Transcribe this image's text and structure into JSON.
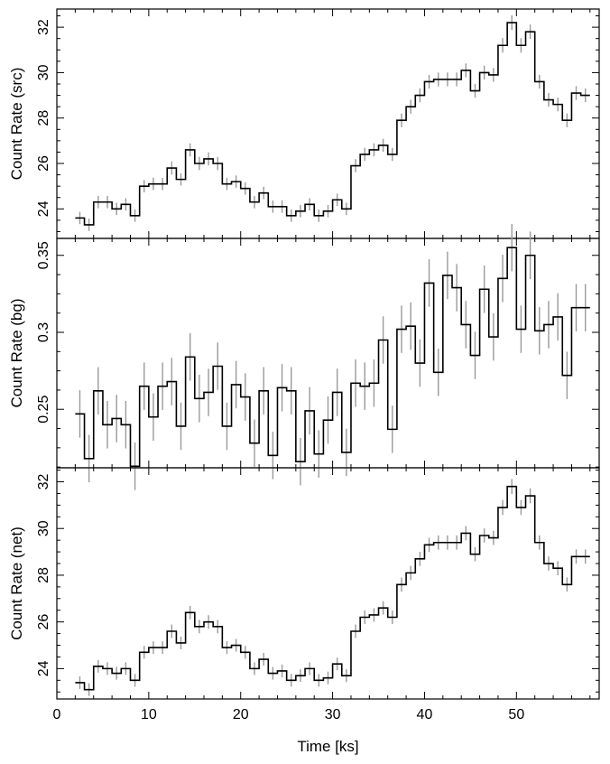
{
  "chart_data": [
    {
      "type": "line",
      "style": "step",
      "ylabel": "Count Rate (src)",
      "xlim": [
        0,
        59
      ],
      "ylim": [
        22.7,
        32.8
      ],
      "yticks": [
        24,
        26,
        28,
        30,
        32
      ],
      "ytick_labels": [
        "24",
        "26",
        "28",
        "30",
        "32"
      ],
      "series": [
        {
          "x": [
            2.5,
            3.5,
            4.5,
            5.5,
            6.5,
            7.5,
            8.5,
            9.5,
            10.5,
            11.5,
            12.5,
            13.5,
            14.5,
            15.5,
            16.5,
            17.5,
            18.5,
            19.5,
            20.5,
            21.5,
            22.5,
            23.5,
            24.5,
            25.5,
            26.5,
            27.5,
            28.5,
            29.5,
            30.5,
            31.5,
            32.5,
            33.5,
            34.5,
            35.5,
            36.5,
            37.5,
            38.5,
            39.5,
            40.5,
            41.5,
            42.5,
            43.5,
            44.5,
            45.5,
            46.5,
            47.5,
            48.5,
            49.5,
            50.5,
            51.5,
            52.5,
            53.5,
            54.5,
            55.5,
            56.5,
            57.5
          ],
          "y": [
            23.6,
            23.3,
            24.3,
            24.3,
            24.0,
            24.2,
            23.7,
            25.0,
            25.1,
            25.1,
            25.8,
            25.3,
            26.6,
            26.0,
            26.2,
            26.0,
            25.1,
            25.2,
            24.9,
            24.3,
            24.7,
            24.1,
            24.1,
            23.7,
            23.9,
            24.2,
            23.7,
            23.9,
            24.4,
            24.0,
            25.9,
            26.4,
            26.6,
            26.8,
            26.4,
            27.9,
            28.5,
            29.0,
            29.6,
            29.7,
            29.7,
            29.7,
            30.1,
            29.2,
            30.0,
            29.9,
            31.2,
            32.2,
            31.2,
            31.8,
            29.6,
            28.8,
            28.6,
            27.9,
            29.1,
            29.0
          ],
          "yerr": [
            0.17,
            0.17,
            0.17,
            0.17,
            0.17,
            0.17,
            0.17,
            0.17,
            0.17,
            0.17,
            0.18,
            0.17,
            0.18,
            0.18,
            0.18,
            0.18,
            0.17,
            0.17,
            0.17,
            0.17,
            0.17,
            0.17,
            0.17,
            0.17,
            0.17,
            0.17,
            0.17,
            0.17,
            0.17,
            0.17,
            0.18,
            0.18,
            0.18,
            0.18,
            0.18,
            0.19,
            0.19,
            0.19,
            0.19,
            0.19,
            0.19,
            0.19,
            0.19,
            0.19,
            0.19,
            0.19,
            0.2,
            0.2,
            0.2,
            0.2,
            0.19,
            0.19,
            0.19,
            0.19,
            0.19,
            0.19
          ]
        }
      ]
    },
    {
      "type": "line",
      "style": "step",
      "ylabel": "Count Rate (bg)",
      "xlim": [
        0,
        59
      ],
      "ylim": [
        0.212,
        0.361
      ],
      "yticks": [
        0.25,
        0.3,
        0.35
      ],
      "ytick_labels": [
        "0.25",
        "0.3",
        "0.35"
      ],
      "series": [
        {
          "x": [
            2.5,
            3.5,
            4.5,
            5.5,
            6.5,
            7.5,
            8.5,
            9.5,
            10.5,
            11.5,
            12.5,
            13.5,
            14.5,
            15.5,
            16.5,
            17.5,
            18.5,
            19.5,
            20.5,
            21.5,
            22.5,
            23.5,
            24.5,
            25.5,
            26.5,
            27.5,
            28.5,
            29.5,
            30.5,
            31.5,
            32.5,
            33.5,
            34.5,
            35.5,
            36.5,
            37.5,
            38.5,
            39.5,
            40.5,
            41.5,
            42.5,
            43.5,
            44.5,
            45.5,
            46.5,
            47.5,
            48.5,
            49.5,
            50.5,
            51.5,
            52.5,
            53.5,
            54.5,
            55.5,
            56.5,
            57.5
          ],
          "y": [
            0.247,
            0.218,
            0.262,
            0.24,
            0.244,
            0.24,
            0.213,
            0.265,
            0.245,
            0.265,
            0.268,
            0.239,
            0.284,
            0.257,
            0.261,
            0.278,
            0.239,
            0.266,
            0.258,
            0.228,
            0.262,
            0.22,
            0.264,
            0.262,
            0.216,
            0.249,
            0.221,
            0.243,
            0.261,
            0.222,
            0.267,
            0.265,
            0.267,
            0.295,
            0.237,
            0.302,
            0.304,
            0.28,
            0.332,
            0.274,
            0.337,
            0.329,
            0.305,
            0.285,
            0.328,
            0.297,
            0.335,
            0.355,
            0.302,
            0.35,
            0.301,
            0.305,
            0.31,
            0.272,
            0.316,
            0.316
          ],
          "yerr": [
            0.007,
            0.007,
            0.007,
            0.007,
            0.007,
            0.007,
            0.007,
            0.007,
            0.007,
            0.007,
            0.007,
            0.007,
            0.007,
            0.007,
            0.007,
            0.007,
            0.007,
            0.007,
            0.007,
            0.007,
            0.007,
            0.007,
            0.007,
            0.007,
            0.007,
            0.007,
            0.007,
            0.007,
            0.007,
            0.007,
            0.007,
            0.007,
            0.007,
            0.007,
            0.007,
            0.007,
            0.007,
            0.007,
            0.007,
            0.007,
            0.007,
            0.007,
            0.007,
            0.007,
            0.007,
            0.007,
            0.007,
            0.007,
            0.007,
            0.007,
            0.007,
            0.007,
            0.007,
            0.007,
            0.007,
            0.007
          ]
        }
      ]
    },
    {
      "type": "line",
      "style": "step",
      "ylabel": "Count Rate (net)",
      "xlabel": "Time [ks]",
      "xlim": [
        0,
        59
      ],
      "ylim": [
        22.7,
        32.6
      ],
      "yticks": [
        24,
        26,
        28,
        30,
        32
      ],
      "ytick_labels": [
        "24",
        "26",
        "28",
        "30",
        "32"
      ],
      "xticks": [
        0,
        10,
        20,
        30,
        40,
        50
      ],
      "xtick_labels": [
        "0",
        "10",
        "20",
        "30",
        "40",
        "50"
      ],
      "series": [
        {
          "x": [
            2.5,
            3.5,
            4.5,
            5.5,
            6.5,
            7.5,
            8.5,
            9.5,
            10.5,
            11.5,
            12.5,
            13.5,
            14.5,
            15.5,
            16.5,
            17.5,
            18.5,
            19.5,
            20.5,
            21.5,
            22.5,
            23.5,
            24.5,
            25.5,
            26.5,
            27.5,
            28.5,
            29.5,
            30.5,
            31.5,
            32.5,
            33.5,
            34.5,
            35.5,
            36.5,
            37.5,
            38.5,
            39.5,
            40.5,
            41.5,
            42.5,
            43.5,
            44.5,
            45.5,
            46.5,
            47.5,
            48.5,
            49.5,
            50.5,
            51.5,
            52.5,
            53.5,
            54.5,
            55.5,
            56.5,
            57.5
          ],
          "y": [
            23.4,
            23.1,
            24.1,
            24.0,
            23.8,
            24.0,
            23.5,
            24.7,
            24.9,
            24.9,
            25.6,
            25.1,
            26.4,
            25.8,
            26.0,
            25.8,
            24.9,
            25.0,
            24.7,
            24.0,
            24.4,
            23.8,
            23.9,
            23.5,
            23.7,
            24.0,
            23.5,
            23.6,
            24.2,
            23.7,
            25.6,
            26.2,
            26.3,
            26.6,
            26.2,
            27.6,
            28.1,
            28.7,
            29.3,
            29.4,
            29.4,
            29.4,
            29.8,
            28.9,
            29.7,
            29.6,
            30.9,
            31.8,
            30.9,
            31.4,
            29.4,
            28.5,
            28.3,
            27.6,
            28.8,
            28.8
          ],
          "yerr": [
            0.17,
            0.17,
            0.17,
            0.17,
            0.17,
            0.17,
            0.17,
            0.17,
            0.17,
            0.17,
            0.18,
            0.17,
            0.18,
            0.18,
            0.18,
            0.18,
            0.17,
            0.17,
            0.17,
            0.17,
            0.17,
            0.17,
            0.17,
            0.17,
            0.17,
            0.17,
            0.17,
            0.17,
            0.17,
            0.17,
            0.18,
            0.18,
            0.18,
            0.18,
            0.18,
            0.19,
            0.19,
            0.19,
            0.19,
            0.19,
            0.19,
            0.19,
            0.19,
            0.19,
            0.19,
            0.19,
            0.2,
            0.2,
            0.2,
            0.2,
            0.19,
            0.19,
            0.19,
            0.19,
            0.19,
            0.19
          ]
        }
      ]
    }
  ],
  "colors": {
    "line": "#000000",
    "error_bar": "#9a9a9a",
    "frame": "#000000"
  }
}
